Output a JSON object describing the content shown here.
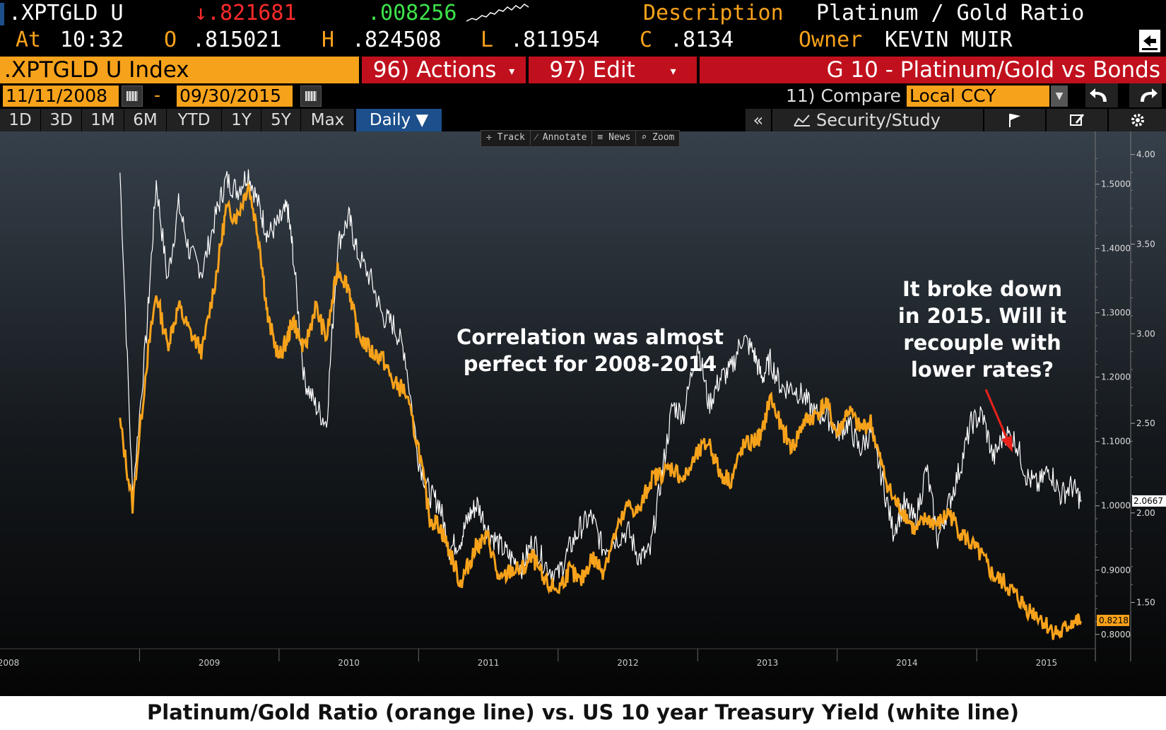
{
  "ticker": {
    "symbol": ".XPTGLD U",
    "last": "↓.821681",
    "change": ".008256",
    "desc_label": "Description",
    "desc_value": "Platinum / Gold Ratio",
    "at_label": "At",
    "time": "10:32",
    "o_label": "O",
    "o_value": ".815021",
    "h_label": "H",
    "h_value": ".824508",
    "l_label": "L",
    "l_value": ".811954",
    "c_label": "C",
    "c_value": ".8134",
    "owner_label": "Owner",
    "owner_value": "KEVIN MUIR"
  },
  "titlebar": {
    "index_name": ".XPTGLD U Index",
    "actions": "96) Actions",
    "edit": "97) Edit",
    "chart_title": "G 10 - Platinum/Gold vs Bonds"
  },
  "dates": {
    "start": "11/11/2008",
    "sep": "-",
    "end": "09/30/2015"
  },
  "compare": {
    "label": "11) Compare",
    "value": "Local CCY"
  },
  "ranges": [
    "1D",
    "3D",
    "1M",
    "6M",
    "YTD",
    "1Y",
    "5Y",
    "Max"
  ],
  "period": "Daily ▼",
  "tools": {
    "collapse": "«",
    "security_study": "Security/Study"
  },
  "mini_toolbar": [
    "✛ Track",
    "⁄ Annotate",
    "≡ News",
    "⌕ Zoom"
  ],
  "annotations": {
    "left": [
      "Correlation was almost",
      "perfect for 2008-2014"
    ],
    "right": [
      "It broke down",
      "in 2015.  Will it",
      "recouple with",
      "lower rates?"
    ]
  },
  "caption": "Platinum/Gold Ratio (orange line) vs. US 10 year Treasury Yield (white line)",
  "colors": {
    "accent": "#f7a21b",
    "bar_red": "#c1101d",
    "up_green": "#3ee24b",
    "down_red": "#ff2a2a"
  },
  "chart_data": {
    "type": "line",
    "x_labels": [
      "2008",
      "2009",
      "2010",
      "2011",
      "2012",
      "2013",
      "2014",
      "2015"
    ],
    "y_left_ticks": [
      "1.5000",
      "1.4000",
      "1.3000",
      "1.2000",
      "1.1000",
      "1.0000",
      "0.9000",
      "0.8000"
    ],
    "y_right_ticks": [
      "4.00",
      "3.50",
      "3.00",
      "2.50",
      "2.00",
      "1.50"
    ],
    "ylim_ratio": [
      0.78,
      1.56
    ],
    "ylim_yield": [
      1.25,
      4.05
    ],
    "last_ratio_label": "0.8218",
    "last_yield_label": "2.0667",
    "series": [
      {
        "name": "Platinum/Gold Ratio",
        "color": "#f7a21b",
        "x": [
          2008.86,
          2008.95,
          2009.05,
          2009.12,
          2009.2,
          2009.28,
          2009.36,
          2009.45,
          2009.55,
          2009.62,
          2009.7,
          2009.78,
          2009.86,
          2009.92,
          2010.0,
          2010.06,
          2010.1,
          2010.18,
          2010.26,
          2010.34,
          2010.42,
          2010.5,
          2010.56,
          2010.66,
          2010.74,
          2010.82,
          2010.9,
          2011.0,
          2011.08,
          2011.15,
          2011.22,
          2011.3,
          2011.36,
          2011.42,
          2011.5,
          2011.58,
          2011.66,
          2011.74,
          2011.82,
          2011.9,
          2012.0,
          2012.08,
          2012.16,
          2012.24,
          2012.32,
          2012.4,
          2012.5,
          2012.58,
          2012.66,
          2012.74,
          2012.82,
          2012.9,
          2013.0,
          2013.08,
          2013.16,
          2013.24,
          2013.32,
          2013.4,
          2013.46,
          2013.52,
          2013.6,
          2013.68,
          2013.76,
          2013.84,
          2013.92,
          2014.0,
          2014.08,
          2014.16,
          2014.24,
          2014.32,
          2014.4,
          2014.48,
          2014.56,
          2014.64,
          2014.72,
          2014.8,
          2014.88,
          2014.96,
          2015.04,
          2015.12,
          2015.2,
          2015.28,
          2015.36,
          2015.44,
          2015.52,
          2015.6,
          2015.68,
          2015.75
        ],
        "values": [
          1.13,
          1.0,
          1.22,
          1.33,
          1.25,
          1.31,
          1.27,
          1.24,
          1.36,
          1.46,
          1.45,
          1.5,
          1.41,
          1.29,
          1.23,
          1.26,
          1.29,
          1.24,
          1.31,
          1.26,
          1.37,
          1.34,
          1.27,
          1.24,
          1.23,
          1.19,
          1.18,
          1.09,
          0.98,
          0.97,
          0.93,
          0.88,
          0.91,
          0.94,
          0.95,
          0.88,
          0.9,
          0.9,
          0.92,
          0.88,
          0.87,
          0.9,
          0.88,
          0.92,
          0.9,
          0.95,
          1.0,
          0.99,
          1.04,
          1.05,
          1.06,
          1.04,
          1.08,
          1.1,
          1.05,
          1.04,
          1.09,
          1.1,
          1.11,
          1.17,
          1.12,
          1.09,
          1.13,
          1.14,
          1.16,
          1.11,
          1.15,
          1.12,
          1.13,
          1.06,
          1.01,
          0.99,
          0.96,
          0.98,
          0.97,
          0.99,
          0.96,
          0.94,
          0.92,
          0.89,
          0.88,
          0.86,
          0.84,
          0.83,
          0.81,
          0.8,
          0.82,
          0.82
        ]
      },
      {
        "name": "US 10 year Treasury Yield",
        "color": "#ffffff",
        "x": [
          2008.86,
          2008.95,
          2009.05,
          2009.12,
          2009.2,
          2009.28,
          2009.36,
          2009.45,
          2009.55,
          2009.62,
          2009.7,
          2009.78,
          2009.86,
          2009.92,
          2010.0,
          2010.06,
          2010.1,
          2010.18,
          2010.26,
          2010.34,
          2010.42,
          2010.5,
          2010.56,
          2010.66,
          2010.74,
          2010.82,
          2010.9,
          2011.0,
          2011.08,
          2011.15,
          2011.22,
          2011.3,
          2011.36,
          2011.42,
          2011.5,
          2011.58,
          2011.66,
          2011.74,
          2011.82,
          2011.9,
          2012.0,
          2012.08,
          2012.16,
          2012.24,
          2012.32,
          2012.4,
          2012.5,
          2012.58,
          2012.66,
          2012.74,
          2012.82,
          2012.9,
          2013.0,
          2013.08,
          2013.16,
          2013.24,
          2013.32,
          2013.4,
          2013.46,
          2013.52,
          2013.6,
          2013.68,
          2013.76,
          2013.84,
          2013.92,
          2014.0,
          2014.08,
          2014.16,
          2014.24,
          2014.32,
          2014.4,
          2014.48,
          2014.56,
          2014.64,
          2014.72,
          2014.8,
          2014.88,
          2014.96,
          2015.04,
          2015.12,
          2015.2,
          2015.28,
          2015.36,
          2015.44,
          2015.52,
          2015.6,
          2015.68,
          2015.75
        ],
        "values": [
          3.9,
          2.1,
          3.0,
          3.85,
          3.3,
          3.72,
          3.45,
          3.35,
          3.67,
          3.86,
          3.8,
          3.9,
          3.7,
          3.55,
          3.62,
          3.7,
          3.45,
          2.75,
          2.6,
          2.5,
          3.5,
          3.65,
          3.45,
          3.3,
          3.1,
          3.05,
          2.9,
          2.3,
          2.1,
          2.05,
          1.8,
          1.85,
          1.98,
          2.05,
          1.9,
          1.82,
          1.75,
          1.7,
          1.85,
          1.72,
          1.65,
          1.8,
          1.92,
          1.98,
          1.8,
          1.85,
          1.9,
          1.75,
          1.78,
          2.2,
          2.6,
          2.55,
          2.95,
          2.6,
          2.75,
          2.8,
          2.98,
          2.9,
          2.75,
          2.85,
          2.7,
          2.7,
          2.65,
          2.55,
          2.55,
          2.45,
          2.5,
          2.35,
          2.45,
          2.2,
          1.9,
          2.05,
          1.95,
          2.25,
          1.85,
          2.05,
          2.25,
          2.5,
          2.55,
          2.3,
          2.45,
          2.4,
          2.2,
          2.15,
          2.25,
          2.1,
          2.15,
          2.07
        ]
      }
    ]
  }
}
